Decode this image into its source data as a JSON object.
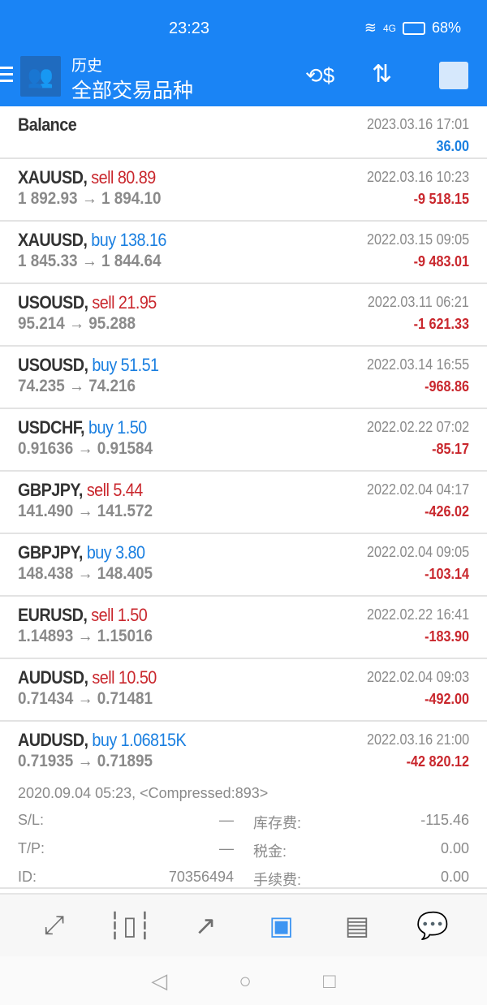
{
  "status": {
    "time": "23:23",
    "network": "4G",
    "battery": "68%"
  },
  "header": {
    "title": "历史",
    "subtitle": "全部交易品种",
    "icons": [
      "menu-icon",
      "mt4-logo",
      "deposit-withdraw-icon",
      "sort-icon",
      "calendar-icon"
    ]
  },
  "balance": {
    "label": "Balance",
    "date": "2023.03.16 17:01",
    "amount": "36.00"
  },
  "trades": [
    {
      "symbol": "XAUUSD,",
      "side": "sell",
      "volume": "80.89",
      "prices": "1 892.93 → 1 894.10",
      "date": "2022.03.16 10:23",
      "profit": "-9 518.15"
    },
    {
      "symbol": "XAUUSD,",
      "side": "buy",
      "volume": "138.16",
      "prices": "1 845.33 → 1 844.64",
      "date": "2022.03.15 09:05",
      "profit": "-9 483.01"
    },
    {
      "symbol": "USOUSD,",
      "side": "sell",
      "volume": "21.95",
      "prices": "95.214 → 95.288",
      "date": "2022.03.11 06:21",
      "profit": "-1 621.33"
    },
    {
      "symbol": "USOUSD,",
      "side": "buy",
      "volume": "51.51",
      "prices": "74.235 → 74.216",
      "date": "2022.03.14 16:55",
      "profit": "-968.86"
    },
    {
      "symbol": "USDCHF,",
      "side": "buy",
      "volume": "1.50",
      "prices": "0.91636 → 0.91584",
      "date": "2022.02.22 07:02",
      "profit": "-85.17"
    },
    {
      "symbol": "GBPJPY,",
      "side": "sell",
      "volume": "5.44",
      "prices": "141.490 → 141.572",
      "date": "2022.02.04 04:17",
      "profit": "-426.02"
    },
    {
      "symbol": "GBPJPY,",
      "side": "buy",
      "volume": "3.80",
      "prices": "148.438 → 148.405",
      "date": "2022.02.04 09:05",
      "profit": "-103.14"
    },
    {
      "symbol": "EURUSD,",
      "side": "sell",
      "volume": "1.50",
      "prices": "1.14893 → 1.15016",
      "date": "2022.02.22 16:41",
      "profit": "-183.90"
    },
    {
      "symbol": "AUDUSD,",
      "side": "sell",
      "volume": "10.50",
      "prices": "0.71434 → 0.71481",
      "date": "2022.02.04 09:03",
      "profit": "-492.00"
    },
    {
      "symbol": "AUDUSD,",
      "side": "buy",
      "volume": "1.06815K",
      "prices": "0.71935 → 0.71895",
      "date": "2022.03.16 21:00",
      "profit": "-42 820.12"
    }
  ],
  "expanded": {
    "open_info": "2020.09.04 05:23, <Compressed:893>",
    "sl_label": "S/L:",
    "sl": "—",
    "swap_label": "库存费:",
    "swap": "-115.46",
    "tp_label": "T/P:",
    "tp": "—",
    "tax_label": "税金:",
    "tax": "0.00",
    "id_label": "ID:",
    "id": "70356494",
    "fee_label": "手续费:",
    "fee": "0.00"
  },
  "bottom_nav": [
    {
      "icon": "quotes-icon"
    },
    {
      "icon": "chart-icon"
    },
    {
      "icon": "trade-icon"
    },
    {
      "icon": "history-icon",
      "active": true
    },
    {
      "icon": "news-icon"
    },
    {
      "icon": "chat-icon"
    }
  ],
  "colors": {
    "primary": "#1a84f5",
    "buy": "#1a7fe0",
    "sell": "#c9272d"
  }
}
